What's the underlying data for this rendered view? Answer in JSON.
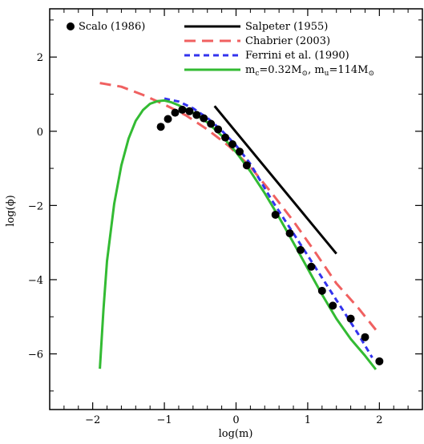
{
  "chart_data": {
    "type": "line",
    "title": "",
    "xlabel": "log(m)",
    "ylabel": "log(ϕ)",
    "xlim": [
      -2.6,
      2.6
    ],
    "ylim": [
      -7.5,
      3.3
    ],
    "grid": false,
    "legend_placement": "top",
    "x_ticks": [
      -2,
      -1,
      0,
      1,
      2
    ],
    "x_tick_labels": [
      "−2",
      "−1",
      "0",
      "1",
      "2"
    ],
    "y_ticks": [
      2,
      0,
      -2,
      -4,
      -6
    ],
    "y_tick_labels": [
      "2",
      "0",
      "−2",
      "−4",
      "−6"
    ],
    "scatter_series": {
      "name": "Scalo (1986)",
      "color": "#000000",
      "points": [
        [
          -1.05,
          0.12
        ],
        [
          -0.95,
          0.33
        ],
        [
          -0.85,
          0.5
        ],
        [
          -0.75,
          0.58
        ],
        [
          -0.65,
          0.54
        ],
        [
          -0.55,
          0.44
        ],
        [
          -0.45,
          0.35
        ],
        [
          -0.35,
          0.2
        ],
        [
          -0.25,
          0.05
        ],
        [
          -0.15,
          -0.17
        ],
        [
          -0.05,
          -0.35
        ],
        [
          0.05,
          -0.55
        ],
        [
          0.15,
          -0.92
        ],
        [
          0.55,
          -2.25
        ],
        [
          0.75,
          -2.75
        ],
        [
          0.9,
          -3.2
        ],
        [
          1.05,
          -3.65
        ],
        [
          1.2,
          -4.3
        ],
        [
          1.35,
          -4.7
        ],
        [
          1.6,
          -5.05
        ],
        [
          1.8,
          -5.55
        ],
        [
          2.0,
          -6.2
        ]
      ]
    },
    "series": [
      {
        "name": "Salpeter (1955)",
        "color": "#000000",
        "dash": "solid",
        "points": [
          [
            -0.3,
            0.68
          ],
          [
            1.4,
            -3.3
          ]
        ]
      },
      {
        "name": "Chabrier (2003)",
        "color": "#f06060",
        "dash": "long-dash",
        "points": [
          [
            -1.9,
            1.3
          ],
          [
            -1.6,
            1.2
          ],
          [
            -1.3,
            0.98
          ],
          [
            -1.0,
            0.72
          ],
          [
            -0.7,
            0.43
          ],
          [
            -0.4,
            0.05
          ],
          [
            -0.1,
            -0.4
          ],
          [
            0.2,
            -0.96
          ],
          [
            0.5,
            -1.67
          ],
          [
            0.8,
            -2.42
          ],
          [
            1.1,
            -3.25
          ],
          [
            1.4,
            -4.1
          ],
          [
            1.7,
            -4.75
          ],
          [
            1.95,
            -5.35
          ]
        ]
      },
      {
        "name": "Ferrini et al. (1990)",
        "color": "#3333ee",
        "dash": "short-dash",
        "points": [
          [
            -1.0,
            0.88
          ],
          [
            -0.8,
            0.8
          ],
          [
            -0.6,
            0.62
          ],
          [
            -0.4,
            0.36
          ],
          [
            -0.2,
            0.02
          ],
          [
            0.0,
            -0.38
          ],
          [
            0.2,
            -0.88
          ],
          [
            0.5,
            -1.86
          ],
          [
            0.8,
            -2.75
          ],
          [
            1.1,
            -3.65
          ],
          [
            1.4,
            -4.55
          ],
          [
            1.7,
            -5.45
          ],
          [
            1.9,
            -6.1
          ]
        ]
      },
      {
        "name": "m_c=0.32M_⊙, m_u=114M_⊙",
        "color": "#33bb33",
        "dash": "solid",
        "points": [
          [
            -1.9,
            -6.4
          ],
          [
            -1.85,
            -4.8
          ],
          [
            -1.8,
            -3.5
          ],
          [
            -1.7,
            -1.95
          ],
          [
            -1.6,
            -0.92
          ],
          [
            -1.5,
            -0.2
          ],
          [
            -1.4,
            0.28
          ],
          [
            -1.3,
            0.57
          ],
          [
            -1.2,
            0.74
          ],
          [
            -1.1,
            0.81
          ],
          [
            -1.0,
            0.83
          ],
          [
            -0.9,
            0.78
          ],
          [
            -0.8,
            0.7
          ],
          [
            -0.6,
            0.5
          ],
          [
            -0.4,
            0.24
          ],
          [
            -0.2,
            -0.12
          ],
          [
            0.0,
            -0.56
          ],
          [
            0.2,
            -1.08
          ],
          [
            0.4,
            -1.67
          ],
          [
            0.6,
            -2.32
          ],
          [
            0.8,
            -3.0
          ],
          [
            1.0,
            -3.7
          ],
          [
            1.2,
            -4.4
          ],
          [
            1.4,
            -5.05
          ],
          [
            1.6,
            -5.6
          ],
          [
            1.8,
            -6.05
          ],
          [
            1.95,
            -6.42
          ]
        ]
      }
    ],
    "legend": {
      "scalo": "Scalo (1986)",
      "salpeter": "Salpeter (1955)",
      "chabrier": "Chabrier (2003)",
      "ferrini": "Ferrini et al. (1990)",
      "model": {
        "m_c_prefix": "m",
        "m_c_sub": "c",
        "m_c_value": "=0.32M",
        "m_u_prefix": ",  m",
        "m_u_sub": "u",
        "m_u_value": "=114M",
        "sun_symbol": "⊙"
      }
    }
  }
}
